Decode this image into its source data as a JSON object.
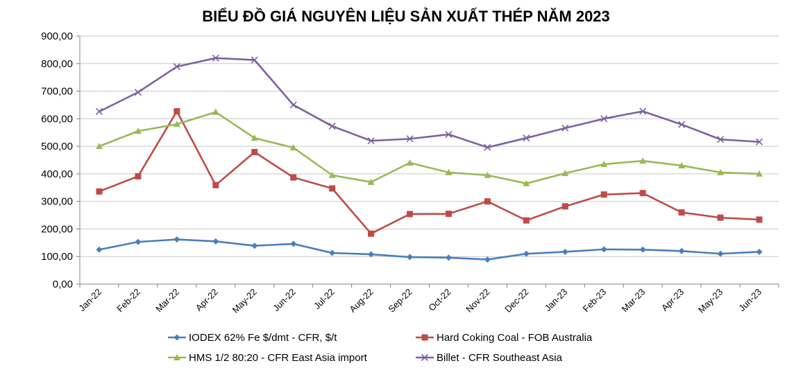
{
  "chart_data": {
    "type": "line",
    "title": "BIỂU ĐỒ GIÁ NGUYÊN LIỆU SẢN XUẤT THÉP NĂM 2023",
    "xlabel": "",
    "ylabel": "",
    "ylim": [
      0,
      900
    ],
    "yticks": [
      "0,00",
      "100,00",
      "200,00",
      "300,00",
      "400,00",
      "500,00",
      "600,00",
      "700,00",
      "800,00",
      "900,00"
    ],
    "grid": true,
    "legend_position": "bottom",
    "categories": [
      "Jan-22",
      "Feb-22",
      "Mar-22",
      "Apr-22",
      "May-22",
      "Jun-22",
      "Jul-22",
      "Aug-22",
      "Sep-22",
      "Oct-22",
      "Nov-22",
      "Dec-22",
      "Jan-23",
      "Feb-23",
      "Mar-23",
      "Apr-23",
      "May-23",
      "Jun-23"
    ],
    "series": [
      {
        "name": "IODEX 62% Fe $/dmt - CFR, $/t",
        "color": "#4a7ebb",
        "marker": "diamond",
        "values": [
          125,
          153,
          162,
          155,
          139,
          146,
          113,
          108,
          98,
          96,
          89,
          110,
          117,
          126,
          125,
          120,
          110,
          117
        ]
      },
      {
        "name": "Hard Coking Coal - FOB Australia",
        "color": "#be4b48",
        "marker": "square",
        "values": [
          336,
          391,
          627,
          359,
          479,
          387,
          347,
          183,
          254,
          255,
          300,
          231,
          282,
          325,
          330,
          260,
          241,
          234
        ]
      },
      {
        "name": "HMS 1/2 80:20 - CFR East Asia import",
        "color": "#98b954",
        "marker": "triangle",
        "values": [
          500,
          555,
          580,
          624,
          530,
          495,
          395,
          370,
          440,
          405,
          395,
          365,
          402,
          435,
          447,
          430,
          405,
          400
        ]
      },
      {
        "name": "Billet - CFR Southeast Asia",
        "color": "#7d60a0",
        "marker": "x",
        "values": [
          626,
          696,
          789,
          820,
          813,
          650,
          573,
          520,
          527,
          543,
          496,
          530,
          566,
          600,
          627,
          579,
          525,
          516
        ]
      }
    ]
  }
}
